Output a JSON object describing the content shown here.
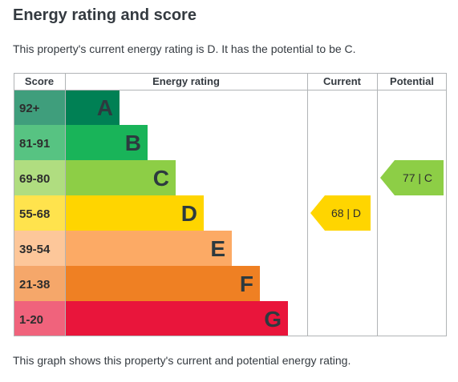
{
  "heading": "Energy rating and score",
  "summary": "This property's current energy rating is D. It has the potential to be C.",
  "footer": "This graph shows this property's current and potential energy rating.",
  "chart_data": {
    "type": "bar",
    "columns": {
      "score": "Score",
      "rating": "Energy rating",
      "current": "Current",
      "potential": "Potential"
    },
    "bands": [
      {
        "letter": "A",
        "range": "92+",
        "color": "#008054",
        "score_color": "#3f9e7c"
      },
      {
        "letter": "B",
        "range": "81-91",
        "color": "#19b459",
        "score_color": "#57c382"
      },
      {
        "letter": "C",
        "range": "69-80",
        "color": "#8dce46",
        "score_color": "#b0dd80"
      },
      {
        "letter": "D",
        "range": "55-68",
        "color": "#ffd500",
        "score_color": "#ffe34d"
      },
      {
        "letter": "E",
        "range": "39-54",
        "color": "#fcaa65",
        "score_color": "#fdc79a"
      },
      {
        "letter": "F",
        "range": "21-38",
        "color": "#ef8023",
        "score_color": "#f5a76a"
      },
      {
        "letter": "G",
        "range": "1-20",
        "color": "#e9153b",
        "score_color": "#f0637c"
      }
    ],
    "current": {
      "value": 68,
      "band": "D",
      "label": "68 | D",
      "color": "#ffd500"
    },
    "potential": {
      "value": 77,
      "band": "C",
      "label": "77 | C",
      "color": "#8dce46"
    }
  }
}
